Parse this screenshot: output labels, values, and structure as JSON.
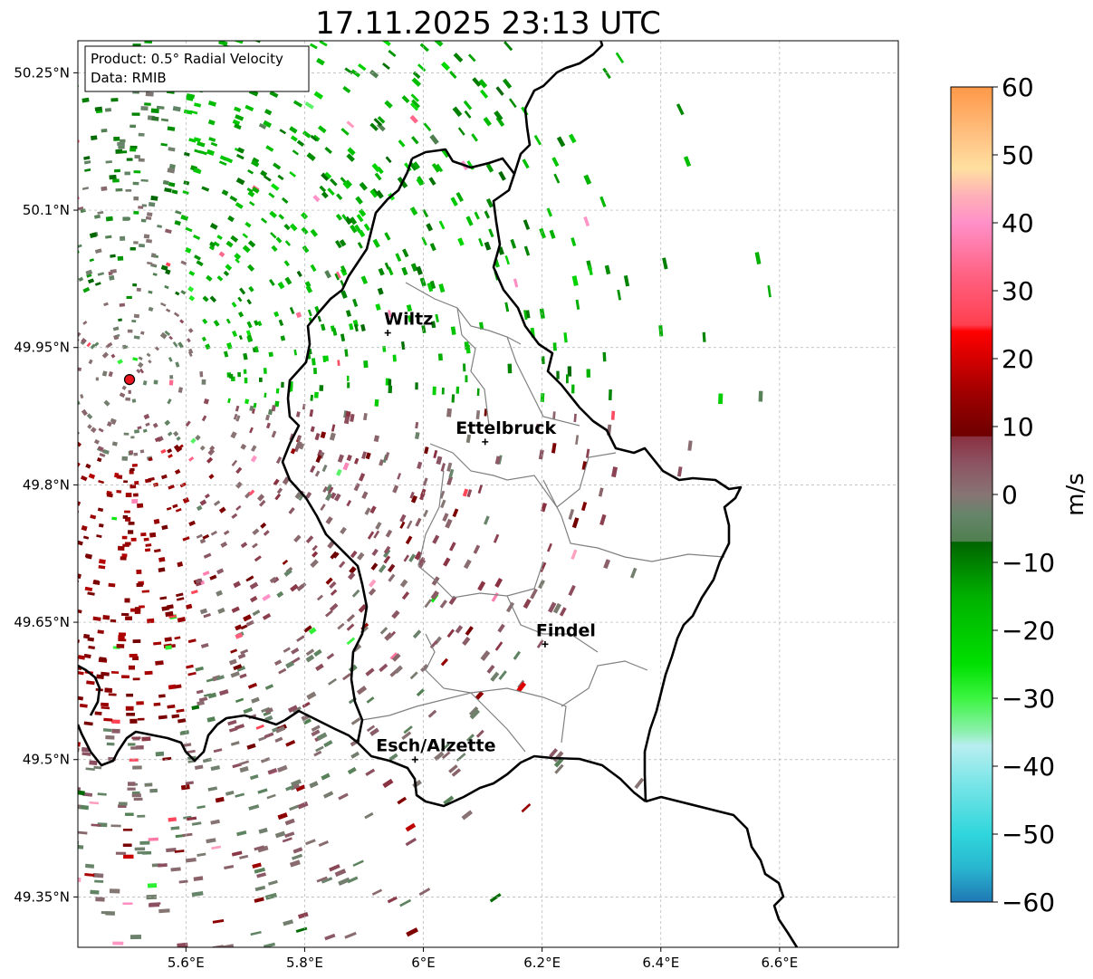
{
  "title": "17.11.2025 23:13 UTC",
  "info_box": {
    "product": "Product: 0.5° Radial Velocity",
    "data": "Data: RMIB"
  },
  "map": {
    "lon_range": [
      5.418,
      6.8
    ],
    "lat_range": [
      49.295,
      50.285
    ],
    "lon_ticks": [
      {
        "value": 5.6,
        "label": "5.6°E"
      },
      {
        "value": 5.8,
        "label": "5.8°E"
      },
      {
        "value": 6.0,
        "label": "6°E"
      },
      {
        "value": 6.2,
        "label": "6.2°E"
      },
      {
        "value": 6.4,
        "label": "6.4°E"
      },
      {
        "value": 6.6,
        "label": "6.6°E"
      }
    ],
    "lat_ticks": [
      {
        "value": 50.25,
        "label": "50.25°N"
      },
      {
        "value": 50.1,
        "label": "50.1°N"
      },
      {
        "value": 49.95,
        "label": "49.95°N"
      },
      {
        "value": 49.8,
        "label": "49.8°N"
      },
      {
        "value": 49.65,
        "label": "49.65°N"
      },
      {
        "value": 49.5,
        "label": "49.5°N"
      },
      {
        "value": 49.35,
        "label": "49.35°N"
      }
    ],
    "radar_site": {
      "lon": 5.505,
      "lat": 49.915,
      "color": "#e8141e"
    },
    "cities": [
      {
        "name": "Wiltz",
        "lon": 5.94,
        "lat": 49.966
      },
      {
        "name": "Ettelbruck",
        "lon": 6.104,
        "lat": 49.847
      },
      {
        "name": "Findel",
        "lon": 6.205,
        "lat": 49.626
      },
      {
        "name": "Esch/Alzette",
        "lon": 5.986,
        "lat": 49.5
      }
    ]
  },
  "colorbar": {
    "label": "m/s",
    "min": -60,
    "max": 60,
    "ticks": [
      {
        "value": 60,
        "label": "60"
      },
      {
        "value": 50,
        "label": "50"
      },
      {
        "value": 40,
        "label": "40"
      },
      {
        "value": 30,
        "label": "30"
      },
      {
        "value": 20,
        "label": "20"
      },
      {
        "value": 10,
        "label": "10"
      },
      {
        "value": 0,
        "label": "0"
      },
      {
        "value": -10,
        "label": "−10"
      },
      {
        "value": -20,
        "label": "−20"
      },
      {
        "value": -30,
        "label": "−30"
      },
      {
        "value": -40,
        "label": "−40"
      },
      {
        "value": -50,
        "label": "−50"
      },
      {
        "value": -60,
        "label": "−60"
      }
    ],
    "stops": [
      {
        "value": -60,
        "color": "#1f77b4"
      },
      {
        "value": -55,
        "color": "#29b6d0"
      },
      {
        "value": -50,
        "color": "#2fd6dc"
      },
      {
        "value": -42,
        "color": "#7fe6e8"
      },
      {
        "value": -37,
        "color": "#b8eef0"
      },
      {
        "value": -35,
        "color": "#8ef0b0"
      },
      {
        "value": -30,
        "color": "#3cf542"
      },
      {
        "value": -25,
        "color": "#00e000"
      },
      {
        "value": -15,
        "color": "#00b000"
      },
      {
        "value": -7,
        "color": "#006400"
      },
      {
        "value": -6.9,
        "color": "#4f7f4f"
      },
      {
        "value": -3,
        "color": "#66856a"
      },
      {
        "value": 0,
        "color": "#887474"
      },
      {
        "value": 5,
        "color": "#8c5060"
      },
      {
        "value": 8.5,
        "color": "#8a3040"
      },
      {
        "value": 8.6,
        "color": "#6e0000"
      },
      {
        "value": 15,
        "color": "#a00000"
      },
      {
        "value": 24,
        "color": "#ff0000"
      },
      {
        "value": 25,
        "color": "#ff4050"
      },
      {
        "value": 32,
        "color": "#ff6080"
      },
      {
        "value": 40,
        "color": "#ff90c8"
      },
      {
        "value": 44,
        "color": "#ffb0b8"
      },
      {
        "value": 48,
        "color": "#ffe0a0"
      },
      {
        "value": 53,
        "color": "#ffc080"
      },
      {
        "value": 60,
        "color": "#ff9848"
      }
    ]
  },
  "colors": {
    "border": "#000000",
    "district": "#808080",
    "grid": "#b0b0b0",
    "city_label": "#000000"
  }
}
